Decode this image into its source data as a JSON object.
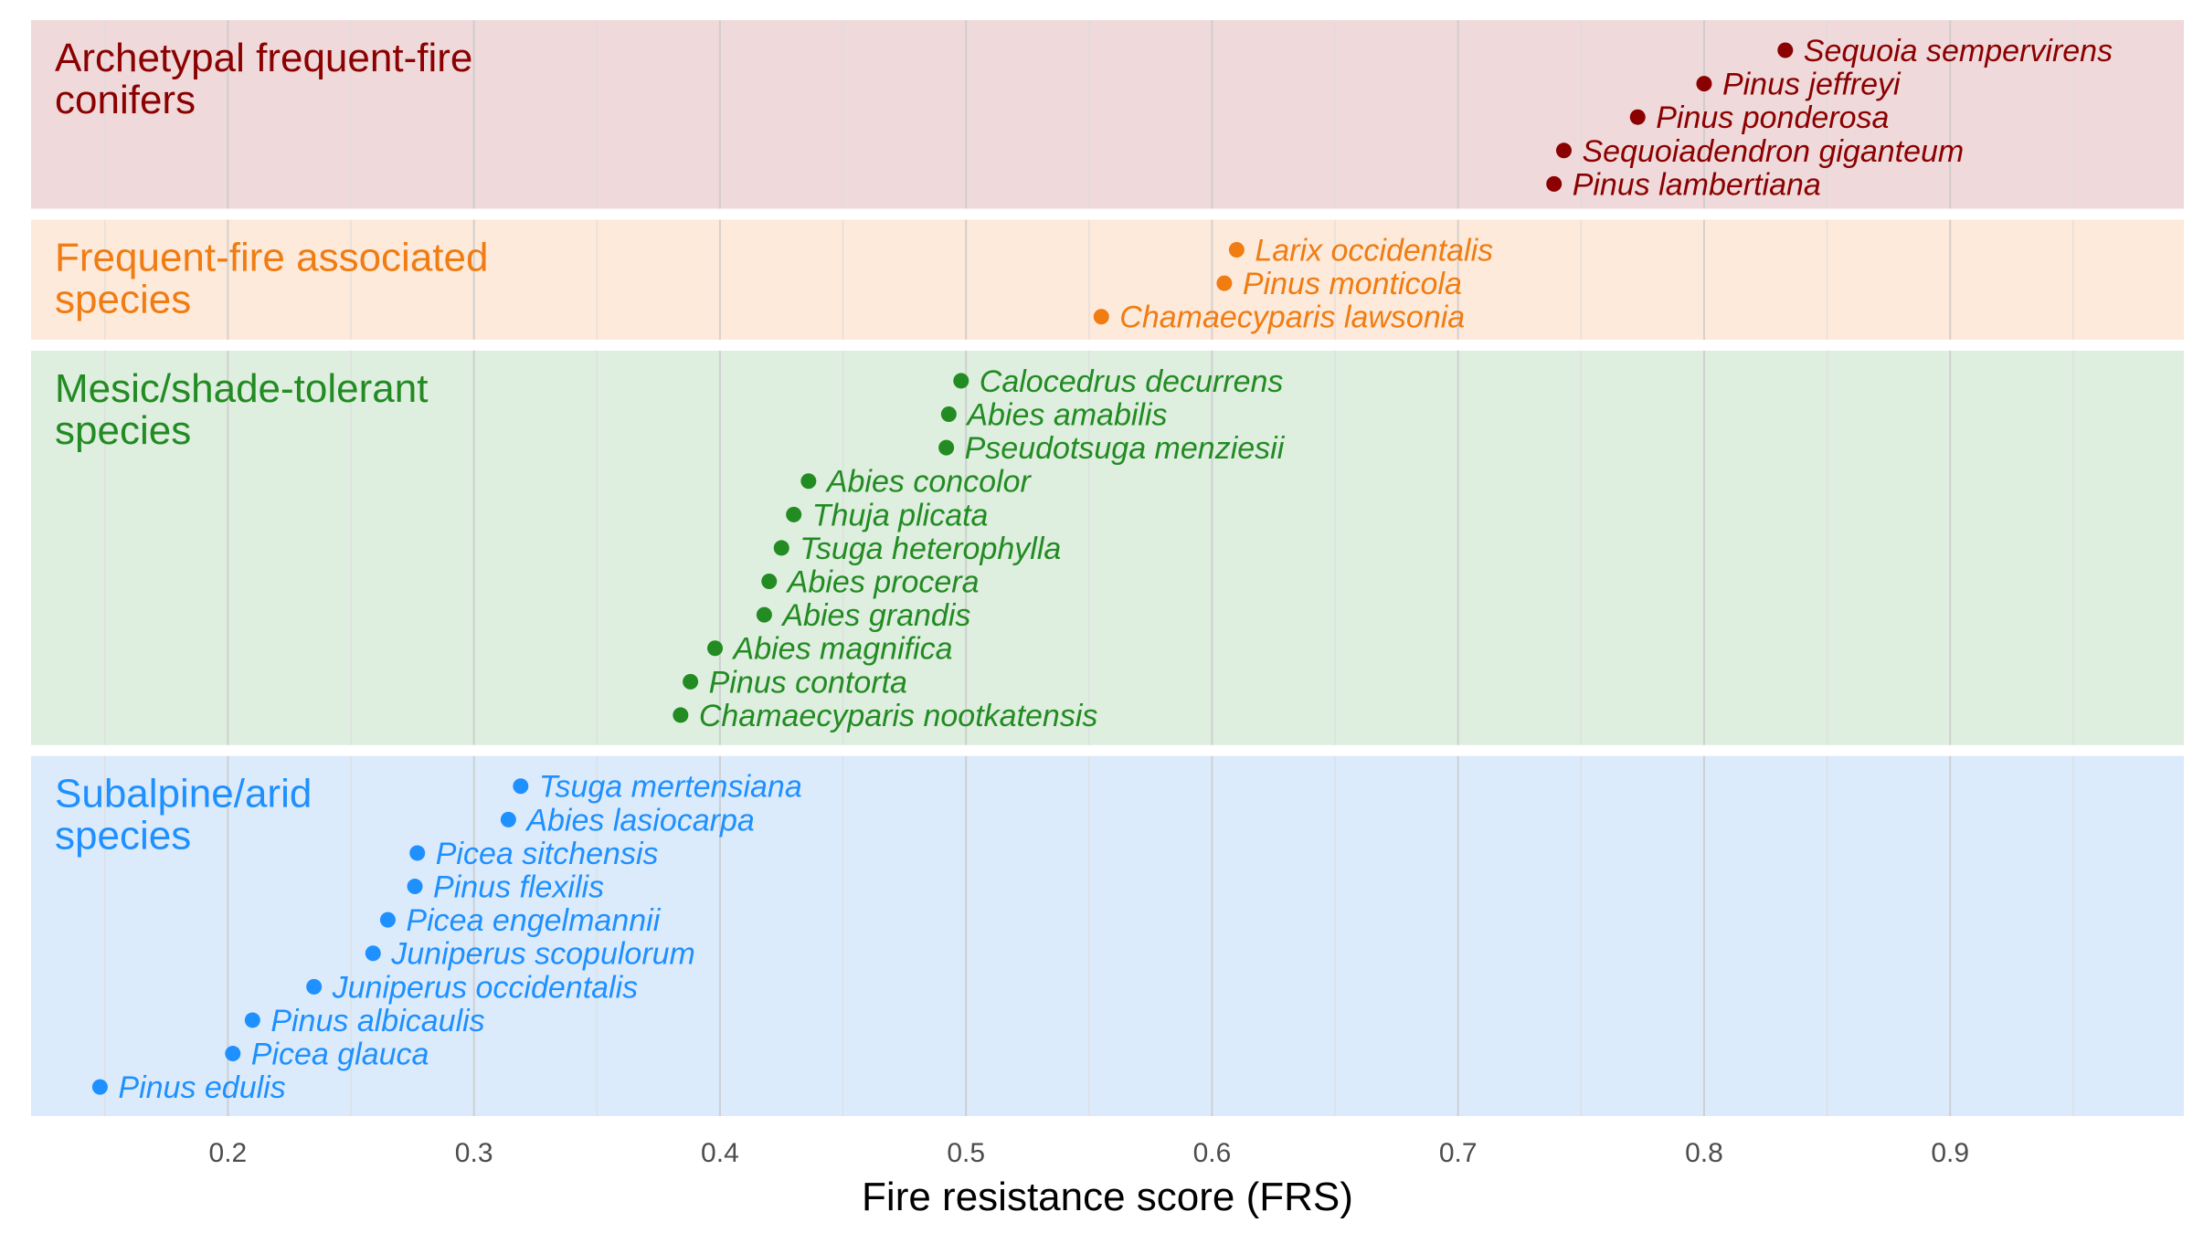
{
  "chart_data": {
    "type": "scatter",
    "title": "",
    "xlabel": "Fire resistance score (FRS)",
    "ylabel": "",
    "xlim": [
      0.12,
      0.995
    ],
    "xticks": [
      0.2,
      0.3,
      0.4,
      0.5,
      0.6,
      0.7,
      0.8,
      0.9
    ],
    "tick_labels": [
      "0.2",
      "0.3",
      "0.4",
      "0.5",
      "0.6",
      "0.7",
      "0.8",
      "0.9"
    ],
    "grid": true,
    "legend": "none",
    "groups": [
      {
        "name": "Archetypal frequent-fire conifers",
        "label_lines": [
          "Archetypal frequent-fire",
          "conifers"
        ],
        "color": "#8b0000",
        "background": "#efd9da",
        "points": [
          {
            "species": "Sequoia sempervirens",
            "frs": 0.833
          },
          {
            "species": "Pinus jeffreyi",
            "frs": 0.8
          },
          {
            "species": "Pinus ponderosa",
            "frs": 0.773
          },
          {
            "species": "Sequoiadendron giganteum",
            "frs": 0.743
          },
          {
            "species": "Pinus lambertiana",
            "frs": 0.739
          }
        ]
      },
      {
        "name": "Frequent-fire associated species",
        "label_lines": [
          "Frequent-fire associated",
          "species"
        ],
        "color": "#f07c12",
        "background": "#fdeadb",
        "points": [
          {
            "species": "Larix occidentalis",
            "frs": 0.61
          },
          {
            "species": "Pinus monticola",
            "frs": 0.605
          },
          {
            "species": "Chamaecyparis lawsonia",
            "frs": 0.555
          }
        ]
      },
      {
        "name": "Mesic/shade-tolerant species",
        "label_lines": [
          "Mesic/shade-tolerant",
          "species"
        ],
        "color": "#228b22",
        "background": "#deeedf",
        "points": [
          {
            "species": "Calocedrus decurrens",
            "frs": 0.498
          },
          {
            "species": "Abies amabilis",
            "frs": 0.493
          },
          {
            "species": "Pseudotsuga menziesii",
            "frs": 0.492
          },
          {
            "species": "Abies concolor",
            "frs": 0.436
          },
          {
            "species": "Thuja plicata",
            "frs": 0.43
          },
          {
            "species": "Tsuga heterophylla",
            "frs": 0.425
          },
          {
            "species": "Abies procera",
            "frs": 0.42
          },
          {
            "species": "Abies grandis",
            "frs": 0.418
          },
          {
            "species": "Abies magnifica",
            "frs": 0.398
          },
          {
            "species": "Pinus contorta",
            "frs": 0.388
          },
          {
            "species": "Chamaecyparis nootkatensis",
            "frs": 0.384
          }
        ]
      },
      {
        "name": "Subalpine/arid species",
        "label_lines": [
          "Subalpine/arid",
          "species"
        ],
        "color": "#1e90ff",
        "background": "#dcebfb",
        "points": [
          {
            "species": "Tsuga mertensiana",
            "frs": 0.319
          },
          {
            "species": "Abies lasiocarpa",
            "frs": 0.314
          },
          {
            "species": "Picea sitchensis",
            "frs": 0.277
          },
          {
            "species": "Pinus flexilis",
            "frs": 0.276
          },
          {
            "species": "Picea engelmannii",
            "frs": 0.265
          },
          {
            "species": "Juniperus scopulorum",
            "frs": 0.259
          },
          {
            "species": "Juniperus occidentalis",
            "frs": 0.235
          },
          {
            "species": "Pinus albicaulis",
            "frs": 0.21
          },
          {
            "species": "Picea glauca",
            "frs": 0.202
          },
          {
            "species": "Pinus edulis",
            "frs": 0.148
          }
        ]
      }
    ]
  }
}
